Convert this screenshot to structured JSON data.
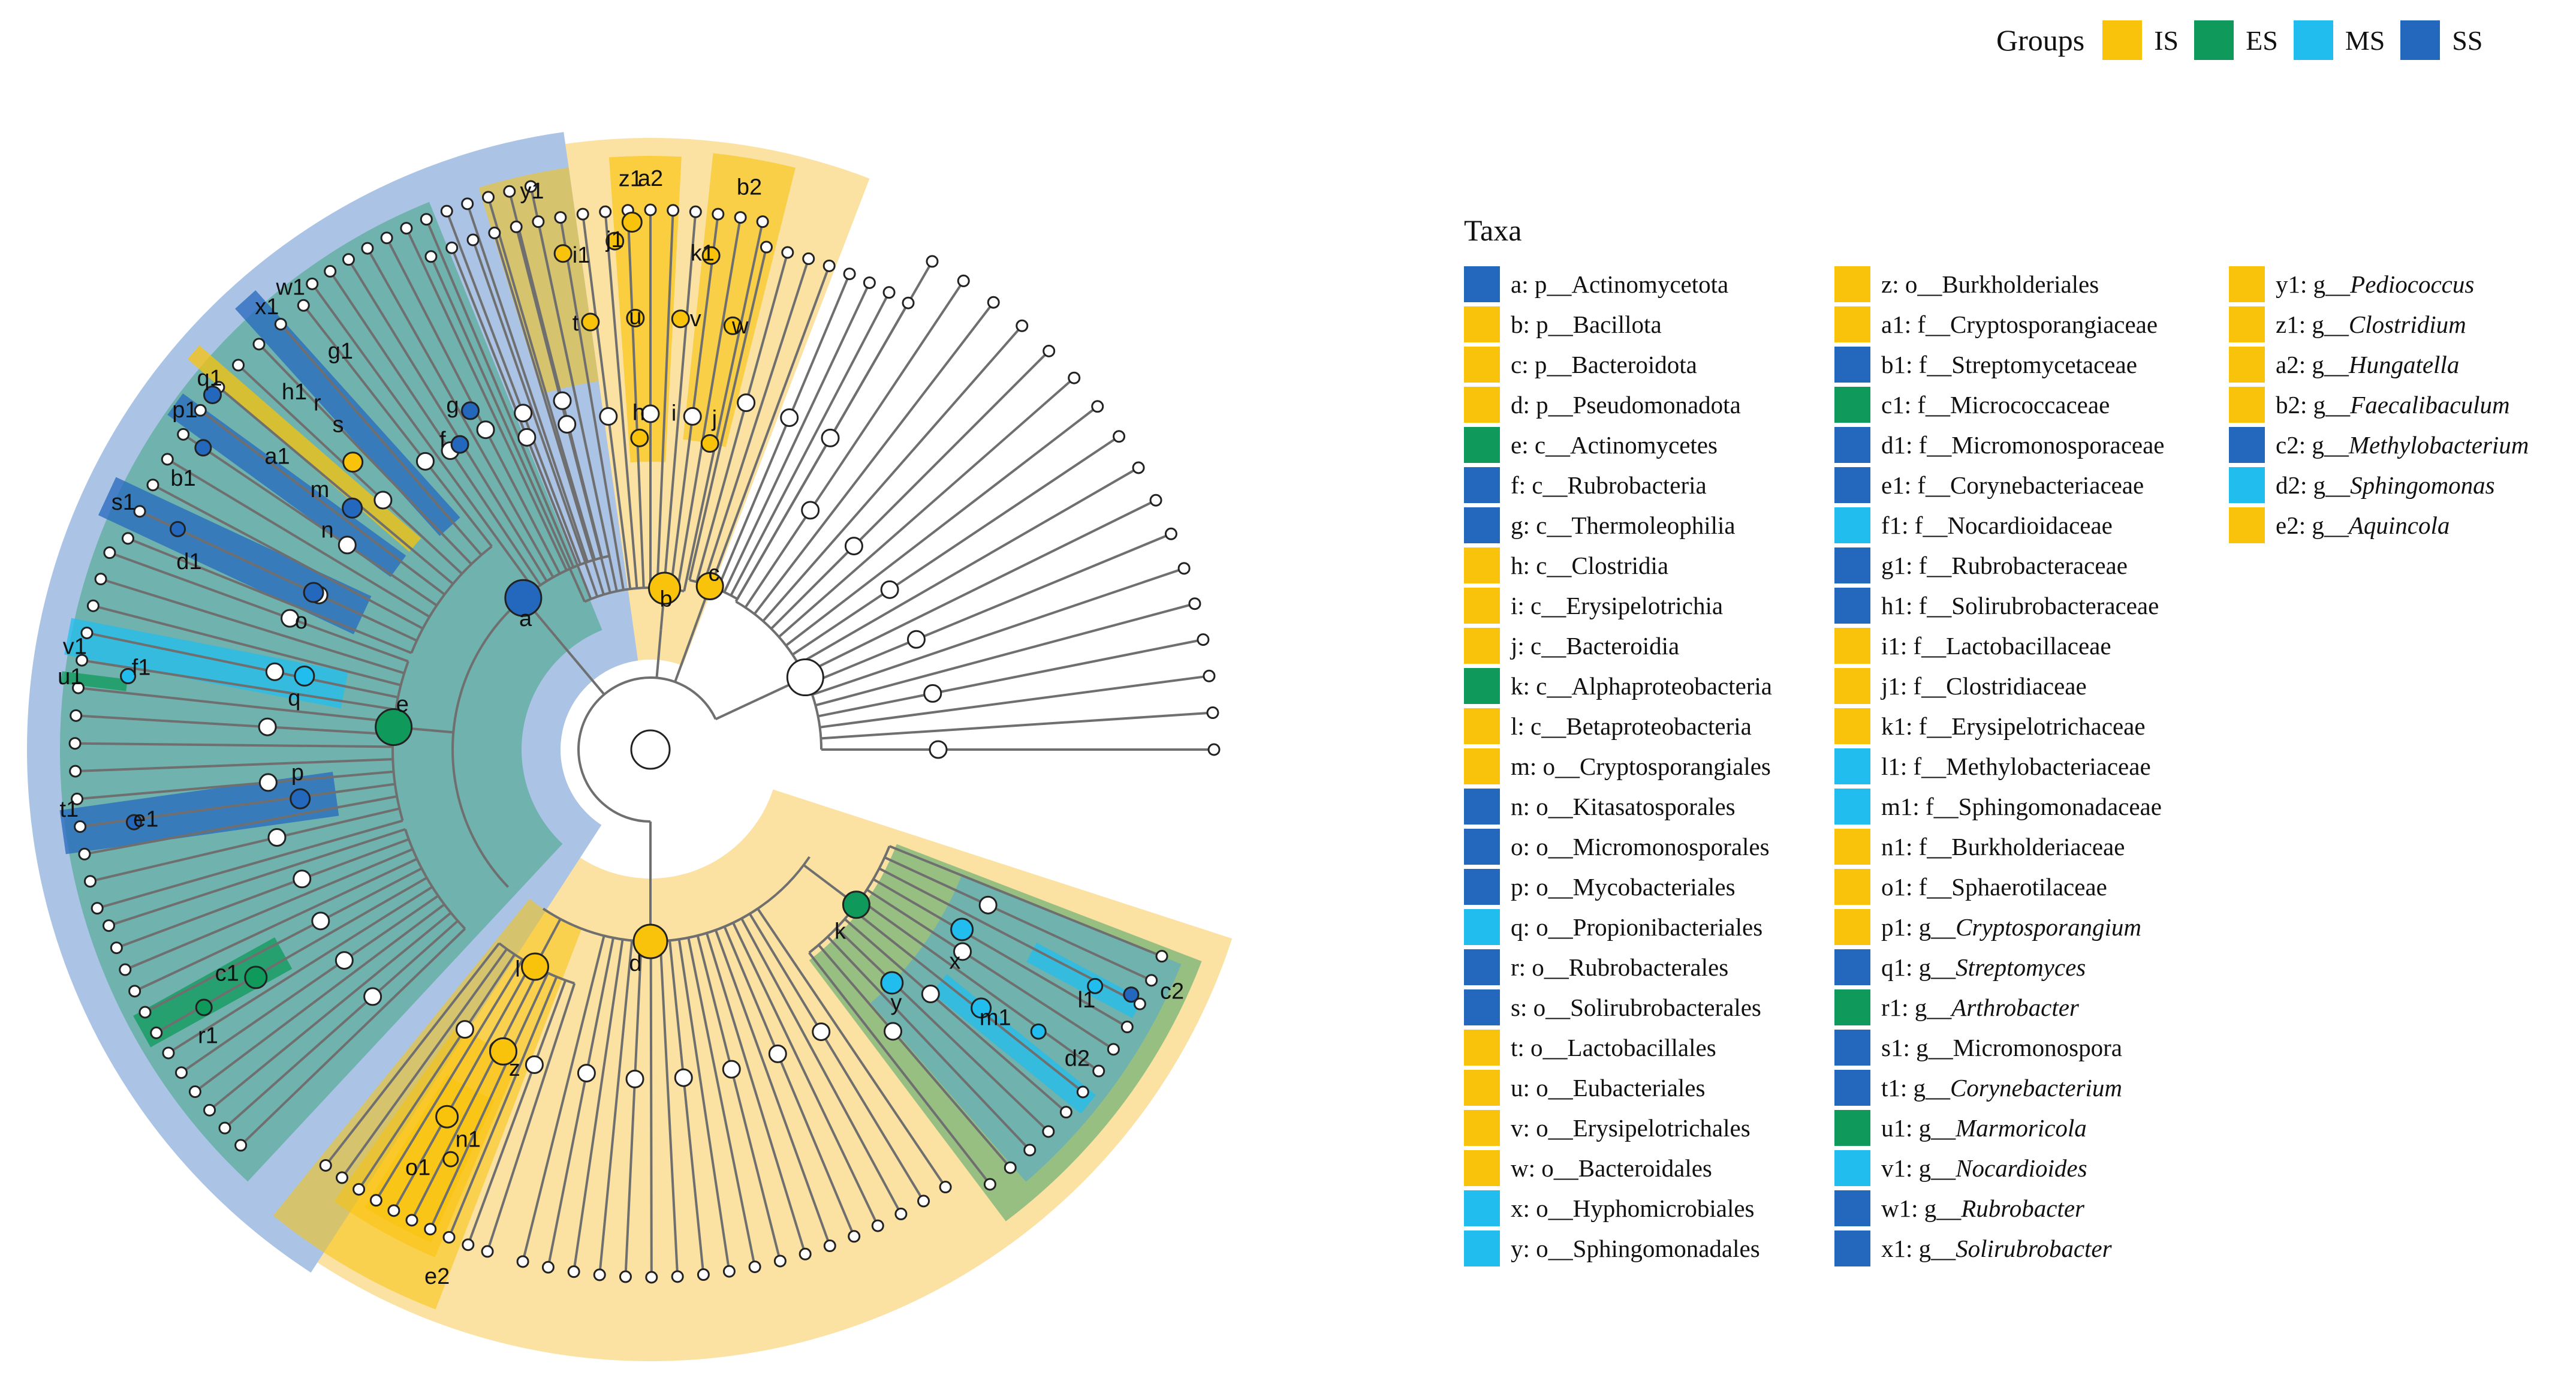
{
  "colors": {
    "IS": "#F9C30B",
    "ES": "#0F9A5B",
    "MS": "#20BDEE",
    "SS": "#2468BE",
    "IS_bg": "#FBE2A2",
    "SS_bg": "#ABC4E6",
    "ES_bg": "#98BF82",
    "MS_bg": "#6FB2AE"
  },
  "groups_legend": {
    "title": "Groups",
    "items": [
      {
        "label": "IS",
        "color": "#F9C30B"
      },
      {
        "label": "ES",
        "color": "#0F9A5B"
      },
      {
        "label": "MS",
        "color": "#20BDEE"
      },
      {
        "label": "SS",
        "color": "#2468BE"
      }
    ]
  },
  "taxa_legend": {
    "title": "Taxa",
    "columns": [
      [
        {
          "text": "a: p__Actinomycetota",
          "group": "SS",
          "italic": false
        },
        {
          "text": "b: p__Bacillota",
          "group": "IS",
          "italic": false
        },
        {
          "text": "c: p__Bacteroidota",
          "group": "IS",
          "italic": false
        },
        {
          "text": "d: p__Pseudomonadota",
          "group": "IS",
          "italic": false
        },
        {
          "text": "e: c__Actinomycetes",
          "group": "ES",
          "italic": false
        },
        {
          "text": "f: c__Rubrobacteria",
          "group": "SS",
          "italic": false
        },
        {
          "text": "g: c__Thermoleophilia",
          "group": "SS",
          "italic": false
        },
        {
          "text": "h: c__Clostridia",
          "group": "IS",
          "italic": false
        },
        {
          "text": "i: c__Erysipelotrichia",
          "group": "IS",
          "italic": false
        },
        {
          "text": "j: c__Bacteroidia",
          "group": "IS",
          "italic": false
        },
        {
          "text": "k: c__Alphaproteobacteria",
          "group": "ES",
          "italic": false
        },
        {
          "text": "l: c__Betaproteobacteria",
          "group": "IS",
          "italic": false
        },
        {
          "text": "m: o__Cryptosporangiales",
          "group": "IS",
          "italic": false
        },
        {
          "text": "n: o__Kitasatosporales",
          "group": "SS",
          "italic": false
        },
        {
          "text": "o: o__Micromonosporales",
          "group": "SS",
          "italic": false
        },
        {
          "text": "p: o__Mycobacteriales",
          "group": "SS",
          "italic": false
        },
        {
          "text": "q: o__Propionibacteriales",
          "group": "MS",
          "italic": false
        },
        {
          "text": "r: o__Rubrobacterales",
          "group": "SS",
          "italic": false
        },
        {
          "text": "s: o__Solirubrobacterales",
          "group": "SS",
          "italic": false
        },
        {
          "text": "t: o__Lactobacillales",
          "group": "IS",
          "italic": false
        },
        {
          "text": "u: o__Eubacteriales",
          "group": "IS",
          "italic": false
        },
        {
          "text": "v: o__Erysipelotrichales",
          "group": "IS",
          "italic": false
        },
        {
          "text": "w: o__Bacteroidales",
          "group": "IS",
          "italic": false
        },
        {
          "text": "x: o__Hyphomicrobiales",
          "group": "MS",
          "italic": false
        },
        {
          "text": "y: o__Sphingomonadales",
          "group": "MS",
          "italic": false
        }
      ],
      [
        {
          "text": "z: o__Burkholderiales",
          "group": "IS",
          "italic": false
        },
        {
          "text": "a1: f__Cryptosporangiaceae",
          "group": "IS",
          "italic": false
        },
        {
          "text": "b1: f__Streptomycetaceae",
          "group": "SS",
          "italic": false
        },
        {
          "text": "c1: f__Micrococcaceae",
          "group": "ES",
          "italic": false
        },
        {
          "text": "d1: f__Micromonosporaceae",
          "group": "SS",
          "italic": false
        },
        {
          "text": "e1: f__Corynebacteriaceae",
          "group": "SS",
          "italic": false
        },
        {
          "text": "f1: f__Nocardioidaceae",
          "group": "MS",
          "italic": false
        },
        {
          "text": "g1: f__Rubrobacteraceae",
          "group": "SS",
          "italic": false
        },
        {
          "text": "h1: f__Solirubrobacteraceae",
          "group": "SS",
          "italic": false
        },
        {
          "text": "i1: f__Lactobacillaceae",
          "group": "IS",
          "italic": false
        },
        {
          "text": "j1: f__Clostridiaceae",
          "group": "IS",
          "italic": false
        },
        {
          "text": "k1: f__Erysipelotrichaceae",
          "group": "IS",
          "italic": false
        },
        {
          "text": "l1: f__Methylobacteriaceae",
          "group": "MS",
          "italic": false
        },
        {
          "text": "m1: f__Sphingomonadaceae",
          "group": "MS",
          "italic": false
        },
        {
          "text": "n1: f__Burkholderiaceae",
          "group": "IS",
          "italic": false
        },
        {
          "text": "o1: f__Sphaerotilaceae",
          "group": "IS",
          "italic": false
        },
        {
          "text": "p1: g__Cryptosporangium",
          "group": "IS",
          "italic": true
        },
        {
          "text": "q1: g__Streptomyces",
          "group": "SS",
          "italic": true
        },
        {
          "text": "r1: g__Arthrobacter",
          "group": "ES",
          "italic": true
        },
        {
          "text": "s1: g__Micromonospora",
          "group": "SS",
          "italic": false
        },
        {
          "text": "t1: g__Corynebacterium",
          "group": "SS",
          "italic": true
        },
        {
          "text": "u1: g__Marmoricola",
          "group": "ES",
          "italic": true
        },
        {
          "text": "v1: g__Nocardioides",
          "group": "MS",
          "italic": true
        },
        {
          "text": "w1: g__Rubrobacter",
          "group": "SS",
          "italic": true
        },
        {
          "text": "x1: g__Solirubrobacter",
          "group": "SS",
          "italic": true
        }
      ],
      [
        {
          "text": "y1: g__Pediococcus",
          "group": "IS",
          "italic": true
        },
        {
          "text": "z1: g__Clostridium",
          "group": "IS",
          "italic": true
        },
        {
          "text": "a2: g__Hungatella",
          "group": "IS",
          "italic": true
        },
        {
          "text": "b2: g__Faecalibaculum",
          "group": "IS",
          "italic": true
        },
        {
          "text": "c2: g__Methylobacterium",
          "group": "SS",
          "italic": true
        },
        {
          "text": "d2: g__Sphingomonas",
          "group": "MS",
          "italic": true
        },
        {
          "text": "e2: g__Aquincola",
          "group": "IS",
          "italic": true
        }
      ]
    ]
  },
  "cladogram": {
    "node_labels": [
      {
        "id": "a",
        "group": "SS"
      },
      {
        "id": "b",
        "group": "IS"
      },
      {
        "id": "c",
        "group": "IS"
      },
      {
        "id": "d",
        "group": "IS"
      },
      {
        "id": "e",
        "group": "ES"
      },
      {
        "id": "f",
        "group": "SS"
      },
      {
        "id": "g",
        "group": "SS"
      },
      {
        "id": "h",
        "group": "IS"
      },
      {
        "id": "i",
        "group": "IS"
      },
      {
        "id": "j",
        "group": "IS"
      },
      {
        "id": "k",
        "group": "ES"
      },
      {
        "id": "l",
        "group": "IS"
      },
      {
        "id": "m",
        "group": "IS"
      },
      {
        "id": "n",
        "group": "SS"
      },
      {
        "id": "o",
        "group": "SS"
      },
      {
        "id": "p",
        "group": "SS"
      },
      {
        "id": "q",
        "group": "MS"
      },
      {
        "id": "r",
        "group": "SS"
      },
      {
        "id": "s",
        "group": "SS"
      },
      {
        "id": "t",
        "group": "IS"
      },
      {
        "id": "u",
        "group": "IS"
      },
      {
        "id": "v",
        "group": "IS"
      },
      {
        "id": "w",
        "group": "IS"
      },
      {
        "id": "x",
        "group": "MS"
      },
      {
        "id": "y",
        "group": "MS"
      },
      {
        "id": "z",
        "group": "IS"
      },
      {
        "id": "a1",
        "group": "IS"
      },
      {
        "id": "b1",
        "group": "SS"
      },
      {
        "id": "c1",
        "group": "ES"
      },
      {
        "id": "d1",
        "group": "SS"
      },
      {
        "id": "e1",
        "group": "SS"
      },
      {
        "id": "f1",
        "group": "MS"
      },
      {
        "id": "g1",
        "group": "SS"
      },
      {
        "id": "h1",
        "group": "SS"
      },
      {
        "id": "i1",
        "group": "IS"
      },
      {
        "id": "j1",
        "group": "IS"
      },
      {
        "id": "k1",
        "group": "IS"
      },
      {
        "id": "l1",
        "group": "MS"
      },
      {
        "id": "m1",
        "group": "MS"
      },
      {
        "id": "n1",
        "group": "IS"
      },
      {
        "id": "o1",
        "group": "IS"
      },
      {
        "id": "p1",
        "group": "IS"
      },
      {
        "id": "q1",
        "group": "SS"
      },
      {
        "id": "r1",
        "group": "ES"
      },
      {
        "id": "s1",
        "group": "SS"
      },
      {
        "id": "t1",
        "group": "SS"
      },
      {
        "id": "u1",
        "group": "ES"
      },
      {
        "id": "v1",
        "group": "MS"
      },
      {
        "id": "w1",
        "group": "SS"
      },
      {
        "id": "x1",
        "group": "SS"
      },
      {
        "id": "y1",
        "group": "IS"
      },
      {
        "id": "z1",
        "group": "IS"
      },
      {
        "id": "a2",
        "group": "IS"
      },
      {
        "id": "b2",
        "group": "IS"
      },
      {
        "id": "c2",
        "group": "SS"
      },
      {
        "id": "d2",
        "group": "MS"
      },
      {
        "id": "e2",
        "group": "IS"
      }
    ]
  }
}
